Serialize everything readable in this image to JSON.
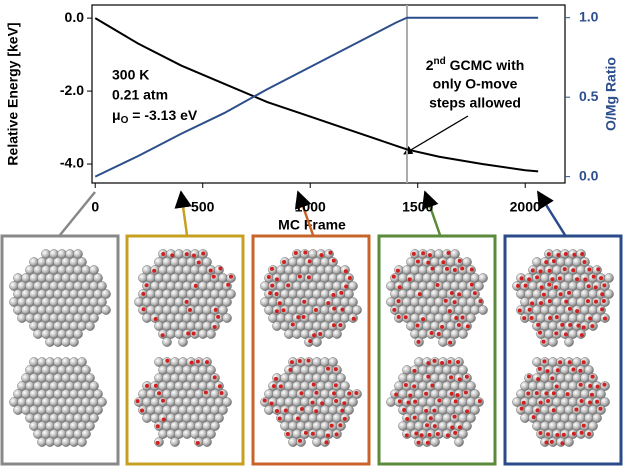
{
  "chart_data": {
    "type": "line",
    "x_label": "MC Frame",
    "y_label": "Relative Energy [keV]",
    "y2_label": "O/Mg Ratio",
    "x": [
      0,
      200,
      400,
      600,
      800,
      1000,
      1200,
      1400,
      1450,
      1600,
      1800,
      2000,
      2060
    ],
    "series": [
      {
        "name": "Relative Energy",
        "color": "#000000",
        "values": [
          0,
          -0.7,
          -1.3,
          -1.8,
          -2.3,
          -2.7,
          -3.1,
          -3.5,
          -3.6,
          -3.8,
          -4.0,
          -4.17,
          -4.2
        ]
      },
      {
        "name": "O/Mg Ratio",
        "color": "#2c4f8c",
        "axis": "y2",
        "values": [
          0,
          0.13,
          0.27,
          0.4,
          0.55,
          0.69,
          0.83,
          0.97,
          1.0,
          1.0,
          1.0,
          1.0,
          1.0
        ]
      }
    ],
    "xlim": [
      -15,
      2185
    ],
    "xticks": [
      0,
      500,
      1000,
      1500,
      2000
    ],
    "ylim": [
      -4.52,
      0.36
    ],
    "yticks": [
      {
        "value": 0,
        "label": "0.0"
      },
      {
        "value": -2,
        "label": "-2.0"
      },
      {
        "value": -4,
        "label": "-4.0"
      }
    ],
    "y2lim": [
      -0.04,
      1.08
    ],
    "y2ticks": [
      {
        "value": 0,
        "label": "0.0"
      },
      {
        "value": 0.5,
        "label": "0.5"
      },
      {
        "value": 1,
        "label": "1.0"
      }
    ],
    "vline": 1450,
    "conditions": [
      "300 K",
      "0.21 atm"
    ],
    "chem_potential": {
      "symbol": "μ",
      "subscript": "O",
      "text": " = -3.13 eV"
    },
    "annotation": {
      "number": "2",
      "superscript": "nd",
      "line1": " GCMC with",
      "line2": "only O-move",
      "line3": "steps allowed"
    }
  }
}
